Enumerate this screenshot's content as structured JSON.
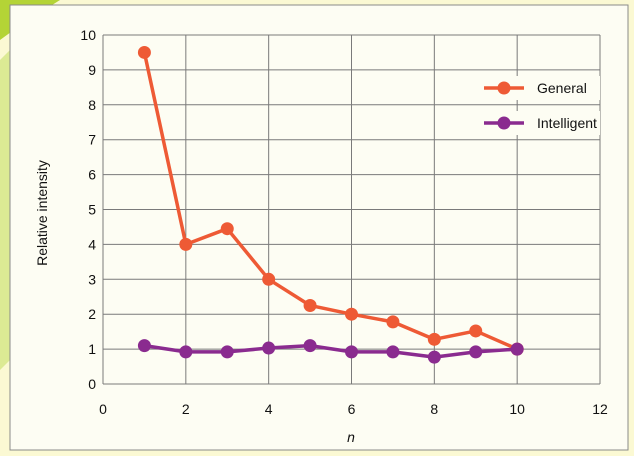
{
  "colors": {
    "background": "#fbf9d3",
    "panel": "#fdfdf3",
    "accent_stripe": "#b4d436",
    "grid": "#7a7a7a",
    "series_general": "#ee5a35",
    "series_intelligent": "#8a2b8f"
  },
  "chart_data": {
    "type": "line",
    "title": "",
    "xlabel": "n",
    "ylabel": "Relative intensity",
    "xlim": [
      0,
      12
    ],
    "ylim": [
      0,
      10
    ],
    "x_ticks": [
      0,
      2,
      4,
      6,
      8,
      10,
      12
    ],
    "y_ticks": [
      0,
      1,
      2,
      3,
      4,
      5,
      6,
      7,
      8,
      9,
      10
    ],
    "grid": true,
    "legend_position": "top-right",
    "series": [
      {
        "name": "General",
        "color": "#ee5a35",
        "x": [
          1,
          2,
          3,
          4,
          5,
          6,
          7,
          8,
          9,
          10
        ],
        "y": [
          9.5,
          4.0,
          4.45,
          3.0,
          2.25,
          2.0,
          1.78,
          1.28,
          1.52,
          1.0
        ]
      },
      {
        "name": "Intelligent",
        "color": "#8a2b8f",
        "x": [
          1,
          2,
          3,
          4,
          5,
          6,
          7,
          8,
          9,
          10
        ],
        "y": [
          1.1,
          0.92,
          0.92,
          1.03,
          1.1,
          0.92,
          0.92,
          0.77,
          0.92,
          1.0
        ]
      }
    ]
  }
}
